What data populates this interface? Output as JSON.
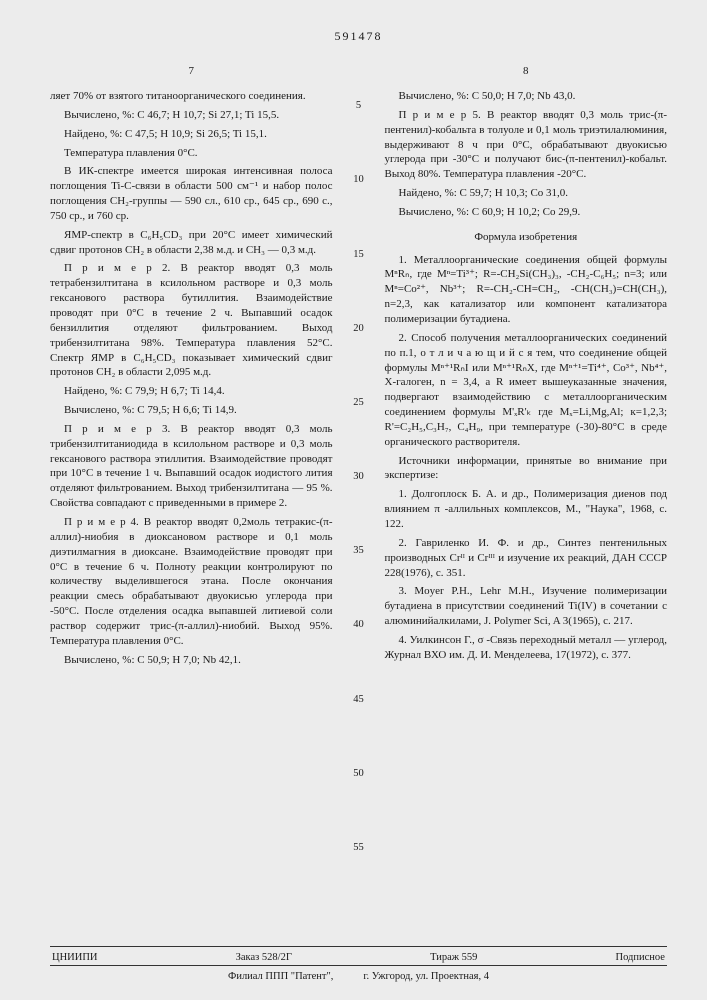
{
  "doc_number": "591478",
  "page_left": "7",
  "page_right": "8",
  "line_numbers": [
    "5",
    "10",
    "15",
    "20",
    "25",
    "30",
    "35",
    "40",
    "45",
    "50",
    "55"
  ],
  "left": {
    "p1": "ляет 70% от взятого титаноорганического соединения.",
    "p2": "Вычислено, %: С 46,7; Н 10,7; Si 27,1; Ti 15,5.",
    "p3": "Найдено, %: С 47,5; Н 10,9; Si 26,5; Ti 15,1.",
    "p4": "Температура плавления 0°С.",
    "p5": "В ИК-спектре имеется широкая интенсивная полоса поглощения Ti-С-связи в области 500 см⁻¹ и набор полос поглощения СН₂-группы — 590 сл., 610 ср., 645 ср., 690 с., 750 ср., и 760 ср.",
    "p6": "ЯМР-спектр в C₆H₅CD₃ при 20°С имеет химический сдвиг протонов СН₂ в области 2,38 м.д. и СН₃ — 0,3 м.д.",
    "p7": "П р и м е р 2. В реактор вводят 0,3 моль тетрабензилтитана в ксилольном растворе и 0,3 моль гексанового раствора бутиллития. Взаимодействие проводят при 0°С в течение 2 ч. Выпавший осадок бензиллития отделяют фильтрованием. Выход трибензилтитана 98%. Температура плавления 52°С. Спектр ЯМР в C₆H₅CD₃ показывает химический сдвиг протонов СН₂ в области 2,095 м.д.",
    "p8": "Найдено, %: С 79,9; Н 6,7; Ti 14,4.",
    "p9": "Вычислено, %: С 79,5; Н 6,6; Ti 14,9.",
    "p10": "П р и м е р 3. В реактор вводят 0,3 моль трибензилтитаниодида в ксилольном растворе и 0,3 моль гексанового раствора этиллития. Взаимодействие проводят при 10°С в течение 1 ч. Выпавший осадок иодистого лития отделяют фильтрованием. Выход трибензилтитана — 95 %. Свойства совпадают с приведенными в примере 2.",
    "p11": "П р и м е р 4. В реактор вводят 0,2моль тетракис-(π-аллил)-ниобия в диоксановом растворе и 0,1 моль диэтилмагния в диоксане. Взаимодействие проводят при 0°С в течение 6 ч. Полноту реакции контролируют по количеству выделившегося этана. После окончания реакции смесь обрабатывают двуокисью углерода при -50°С. После отделения осадка выпавшей литиевой соли раствор содержит трис-(π-аллил)-ниобий. Выход 95%. Температура плавления 0°С.",
    "p12": "Вычислено, %: С 50,9; Н 7,0; Nb 42,1."
  },
  "right": {
    "p1": "Вычислено, %: С 50,0; Н 7,0; Nb 43,0.",
    "p2": "П р и м е р 5. В реактор вводят 0,3 моль трис-(π-пентенил)-кобальта в толуоле и 0,1 моль триэтилалюминия, выдерживают 8 ч при 0°С, обрабатывают двуокисью углерода при -30°С и получают бис-(π-пентенил)-кобальт. Выход 80%. Температура плавления -20°С.",
    "p3": "Найдено, %: С 59,7; Н 10,3; Со 31,0.",
    "p4": "Вычислено, %: С 60,9; Н 10,2; Со 29,9.",
    "formula_title": "Формула изобретения",
    "p5": "1. Металлоорганические соединения общей формулы MⁿRₙ, где Mⁿ=Ti³⁺; R=-CH₂Si(CH₃)₃, -CH₂-C₆H₅; n=3; или Mⁿ=Co²⁺, Nb³⁺; R=-CH₂-CH=CH₂, -CH(CH₃)=CH(CH₃), n=2,3, как катализатор или компонент катализатора полимеризации бутадиена.",
    "p6": "2. Способ получения металлоорганических соединений по п.1, о т л и ч а ю щ и й с я тем, что соединение общей формулы Mⁿ⁺¹RₙI или Mⁿ⁺¹RₙX, где Mⁿ⁺¹=Ti⁴⁺, Co³⁺, Nb⁴⁺, X-галоген, n = 3,4, а R имеет вышеуказанные значения, подвергают взаимодействию с металлоорганическим соединением формулы M'ₓR'ₖ где Mₓ=Li,Mg,Al; к=1,2,3; R'=C₂H₅,C₃H₇, C₄H₉, при температуре (-30)-80°С в среде органического растворителя.",
    "refs_title": "Источники информации, принятые во внимание при экспертизе:",
    "r1": "1. Долгоплоск Б. А. и др., Полимеризация диенов под влиянием π -аллильных комплексов, М., \"Наука\", 1968, с. 122.",
    "r2": "2. Гавриленко И. Ф. и др., Синтез пентенильных производных Crᴵᴵ и Crᴵᴵᴵ и изучение их реакций, ДАН СССР 228(1976), с. 351.",
    "r3": "3. Moyer P.H., Lehr M.H., Изучение полимеризации бутадиена в присутствии соединений Ti(IV) в сочетании с алюминийалкилами, J. Polymer Sci, A 3(1965), с. 217.",
    "r4": "4. Уилкинсон Г., σ -Связь переходный металл — углерод, Журнал ВХО им. Д. И. Менделеева, 17(1972), с. 377."
  },
  "footer": {
    "org": "ЦНИИПИ",
    "order": "Заказ  528/2Г",
    "tirazh": "Тираж  559",
    "sub": "Подписное",
    "line2a": "Филиал ППП \"Патент\",",
    "line2b": "г. Ужгород, ул. Проектная, 4"
  }
}
